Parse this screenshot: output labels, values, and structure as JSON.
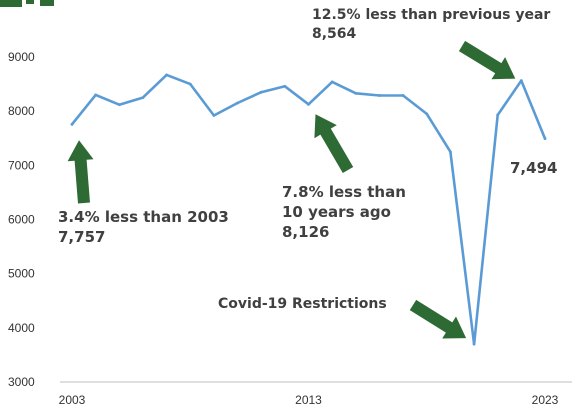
{
  "chart_data": {
    "type": "line",
    "x": [
      2003,
      2004,
      2005,
      2006,
      2007,
      2008,
      2009,
      2010,
      2011,
      2012,
      2013,
      2014,
      2015,
      2016,
      2017,
      2018,
      2019,
      2020,
      2021,
      2022,
      2023
    ],
    "series": [
      {
        "values": [
          7757,
          8300,
          8120,
          8250,
          8670,
          8500,
          7920,
          8150,
          8350,
          8460,
          8126,
          8540,
          8330,
          8290,
          8290,
          7950,
          7250,
          3700,
          7930,
          8564,
          7494
        ],
        "color": "#5b9bd5"
      }
    ],
    "xlim": [
      2003,
      2023
    ],
    "ylim": [
      3000,
      9000
    ],
    "yticks": [
      {
        "value": 3000,
        "label": "3000"
      },
      {
        "value": 4000,
        "label": "4000"
      },
      {
        "value": 5000,
        "label": "5000"
      },
      {
        "value": 6000,
        "label": "6000"
      },
      {
        "value": 7000,
        "label": "7000"
      },
      {
        "value": 8000,
        "label": "8000"
      },
      {
        "value": 9000,
        "label": "9000"
      }
    ],
    "xticks": [
      {
        "value": 2003,
        "label": "2003"
      },
      {
        "value": 2013,
        "label": "2013"
      },
      {
        "value": 2023,
        "label": "2023"
      }
    ],
    "grid": false,
    "title": "",
    "xlabel": "",
    "ylabel": "",
    "arrow_color": "#2e6b34",
    "annotations": [
      {
        "key": "a2003",
        "lines": [
          "3.4% less than 2003",
          "7,757"
        ]
      },
      {
        "key": "a2013",
        "lines": [
          "7.8% less than",
          "10 years ago",
          "8,126"
        ]
      },
      {
        "key": "a2022",
        "lines": [
          "12.5% less than previous year",
          "8,564"
        ]
      },
      {
        "key": "a2023",
        "lines": [
          "7,494"
        ]
      },
      {
        "key": "covid",
        "lines": [
          "Covid-19 Restrictions"
        ]
      }
    ]
  }
}
